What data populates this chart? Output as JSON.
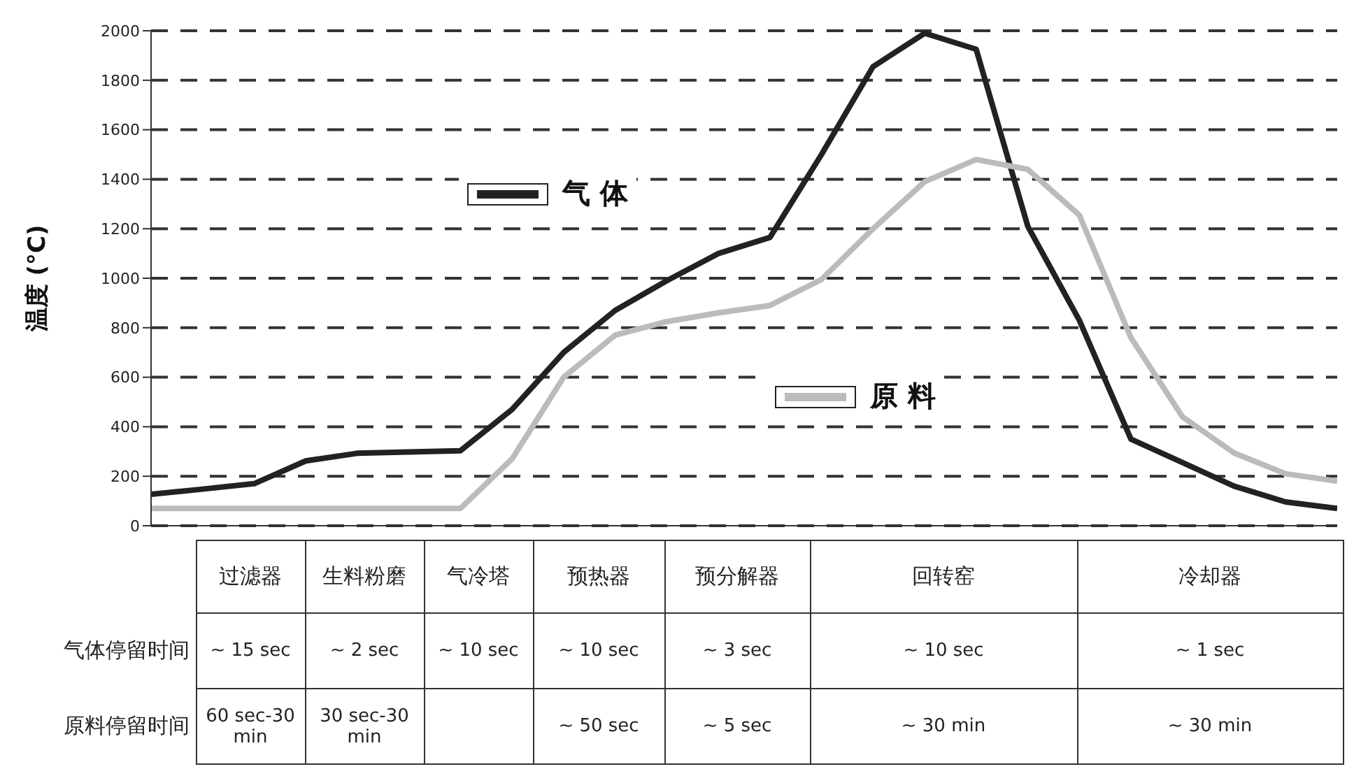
{
  "chart_data": [
    {
      "type": "line",
      "ylabel": "温度 (°C)",
      "categories": [
        null,
        null,
        null,
        null,
        null,
        null,
        null,
        null,
        null,
        null,
        null,
        null,
        null,
        null,
        null,
        null,
        null,
        null,
        null,
        null,
        null,
        null,
        null,
        null
      ],
      "series": [
        {
          "name": "气 体",
          "color": "#222222",
          "values": [
            127,
            148,
            170,
            262,
            293,
            298,
            303,
            470,
            700,
            870,
            990,
            1100,
            1165,
            1500,
            1855,
            1990,
            1925,
            1210,
            830,
            350,
            255,
            160,
            96,
            70
          ]
        },
        {
          "name": "原 料",
          "color": "#bbbbbb",
          "values": [
            70,
            70,
            70,
            70,
            70,
            70,
            70,
            270,
            600,
            770,
            825,
            860,
            890,
            995,
            1200,
            1390,
            1480,
            1440,
            1255,
            760,
            440,
            294,
            210,
            180
          ]
        }
      ],
      "ylim": [
        0,
        2000
      ],
      "yticks": [
        0,
        200,
        400,
        600,
        800,
        1000,
        1200,
        1400,
        1600,
        1800,
        2000
      ],
      "grid": "y",
      "line_style": "solid",
      "marker": "none",
      "legend": "center",
      "tick_labels": "y"
    },
    {
      "type": "other",
      "categories": [
        "过滤器",
        "生料粉磨",
        "气冷塔",
        "预热器",
        "预分解器",
        "回转窑",
        "冷却器"
      ],
      "y_categories": [
        "气体停留时间",
        "原料停留时间"
      ],
      "cell_labels": [
        [
          "~ 15 sec",
          "~ 2 sec",
          "~ 10 sec",
          "~ 10 sec",
          "~ 3 sec",
          "~ 10 sec",
          "~ 1 sec"
        ],
        [
          "60 sec-30 min",
          "30 sec-30 min",
          null,
          "~ 50 sec",
          "~ 5 sec",
          "~ 30 min",
          "~ 30 min"
        ]
      ]
    }
  ]
}
